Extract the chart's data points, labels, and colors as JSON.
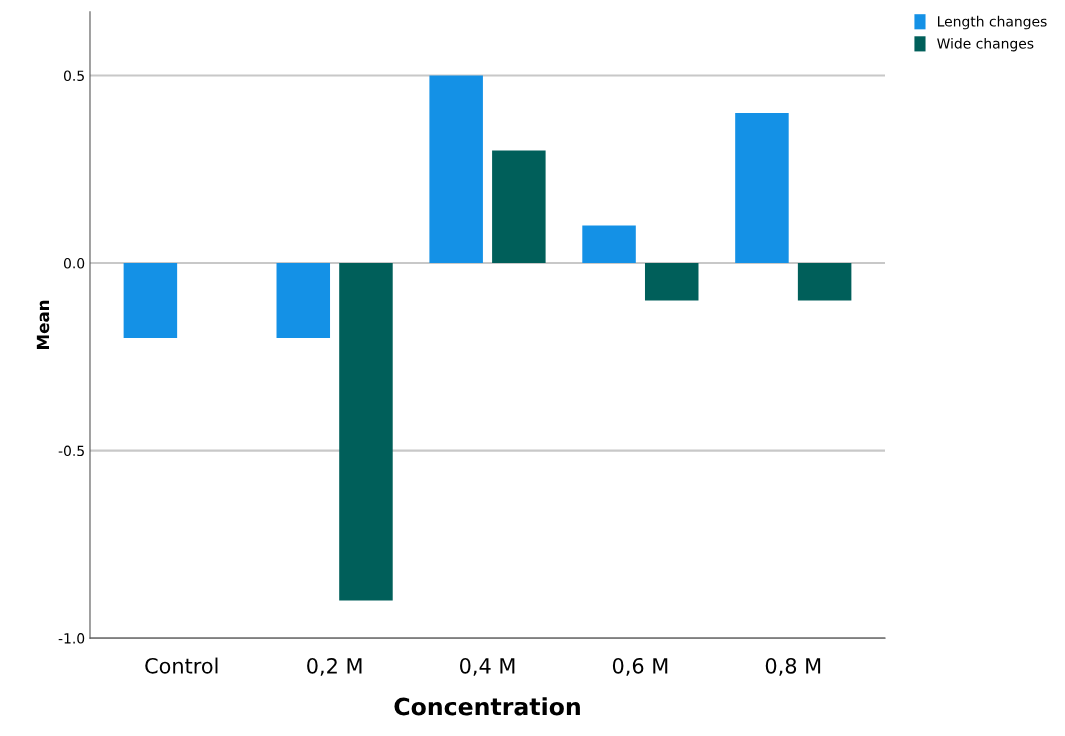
{
  "chart_data": {
    "type": "bar",
    "xlabel": "Concentration",
    "ylabel": "Mean",
    "categories": [
      "Control",
      "0,2 M",
      "0,4 M",
      "0,6 M",
      "0,8 M"
    ],
    "series": [
      {
        "name": "Length changes",
        "color": "#1491e6",
        "values": [
          -0.2,
          -0.2,
          0.5,
          0.1,
          0.4
        ]
      },
      {
        "name": "Wide changes",
        "color": "#005f5a",
        "values": [
          null,
          -0.9,
          0.3,
          -0.1,
          -0.1
        ]
      }
    ],
    "ylim": [
      -1.0,
      0.67
    ],
    "yticks": [
      {
        "value": -1,
        "label": "-1.0"
      },
      -0.5,
      {
        "value": 0,
        "label": "0.0"
      },
      0.5
    ],
    "grid": "y",
    "legend": "top right"
  }
}
